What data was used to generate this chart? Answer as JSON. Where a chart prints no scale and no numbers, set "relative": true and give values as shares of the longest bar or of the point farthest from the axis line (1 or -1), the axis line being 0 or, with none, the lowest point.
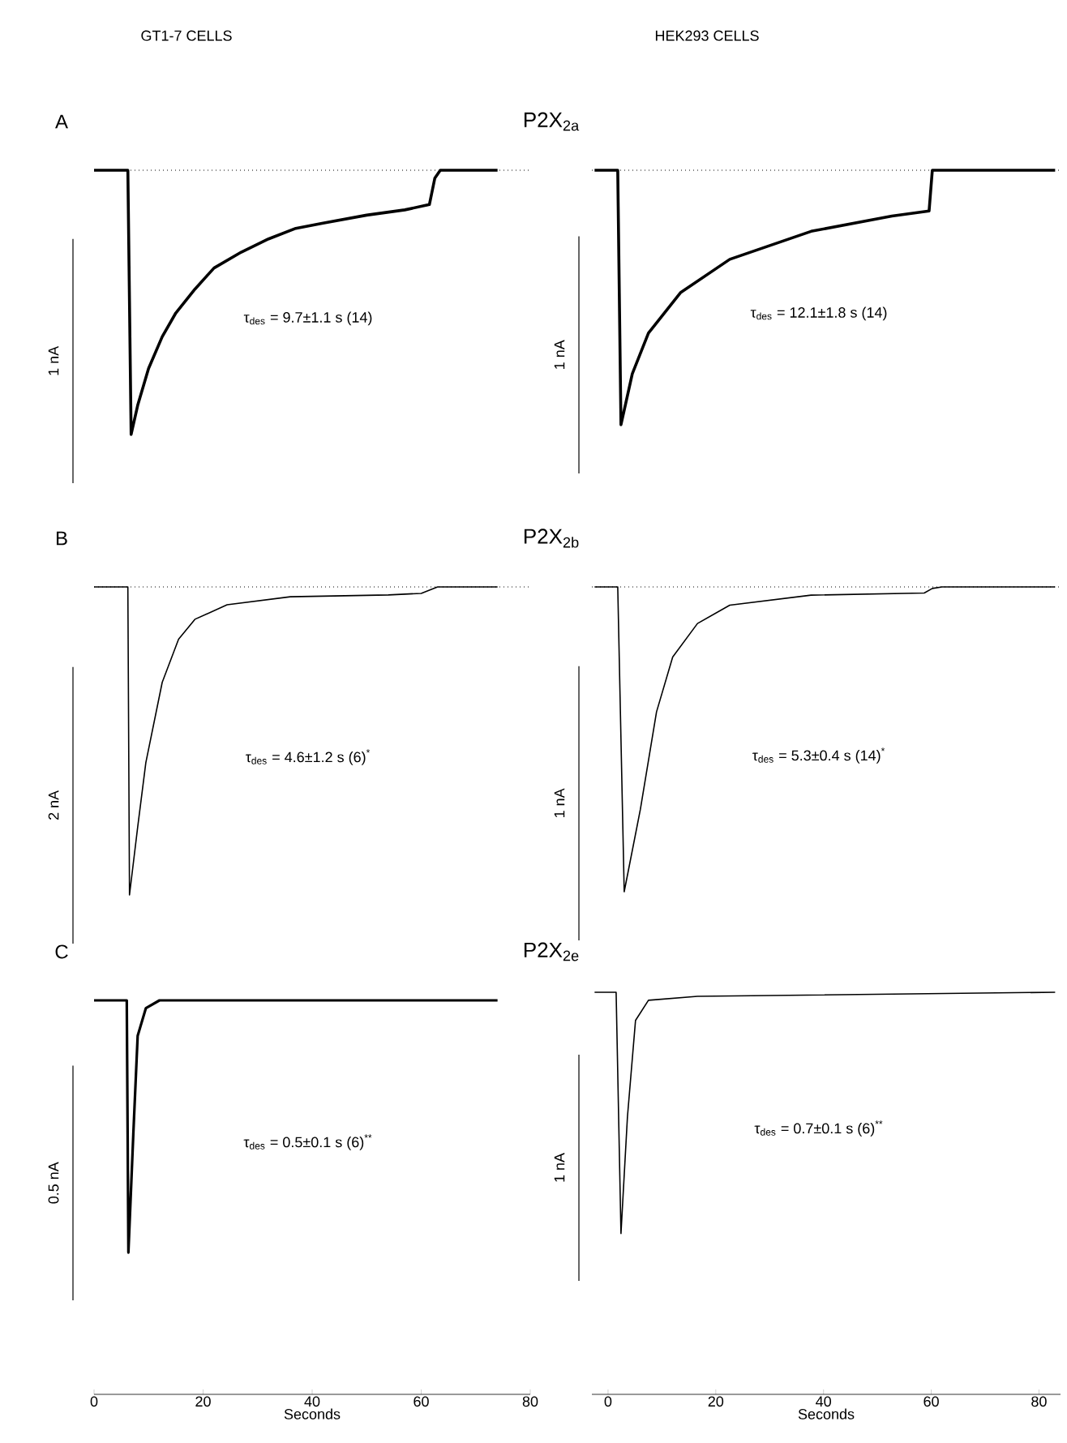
{
  "chart_data": [
    {
      "type": "line",
      "title": "GT1-7 CELLS",
      "relative": true,
      "tick_labels": false,
      "xlim": [
        0,
        80
      ],
      "x": [
        0,
        6.2,
        6.8,
        8,
        10,
        12.5,
        15,
        18.5,
        22,
        27,
        32,
        37,
        42,
        50,
        57,
        61.5,
        62.5,
        63.5,
        74
      ],
      "values": [
        0,
        0,
        -1,
        -0.89,
        -0.75,
        -0.63,
        -0.54,
        -0.45,
        -0.37,
        -0.31,
        -0.26,
        -0.22,
        -0.2,
        -0.17,
        -0.15,
        -0.13,
        -0.03,
        0,
        0
      ],
      "color": "#000000",
      "ref_lines": [
        {
          "axis": "y",
          "value": 0,
          "line_style": "dotted"
        }
      ],
      "annotations": [
        "A",
        "P2X$_{2a}$",
        "1 nA",
        "τ$_{des}$ = 9.7±1.1 s (14)"
      ]
    },
    {
      "type": "line",
      "title": "HEK293 CELLS",
      "relative": true,
      "tick_labels": false,
      "xlim": [
        -3,
        84
      ],
      "x": [
        -2.5,
        1.8,
        2.4,
        4.5,
        7.5,
        13.5,
        22.6,
        37.7,
        52.7,
        59.6,
        60.2,
        83
      ],
      "values": [
        0,
        0,
        -1,
        -0.8,
        -0.64,
        -0.48,
        -0.35,
        -0.24,
        -0.18,
        -0.16,
        0,
        0
      ],
      "color": "#000000",
      "ref_lines": [
        {
          "axis": "y",
          "value": 0,
          "line_style": "dotted"
        }
      ],
      "annotations": [
        "1 nA",
        "τ$_{des}$ = 12.1±1.8 s (14)"
      ]
    },
    {
      "type": "line",
      "relative": true,
      "tick_labels": false,
      "xlim": [
        0,
        80
      ],
      "x": [
        0,
        6.2,
        6.5,
        8,
        9.5,
        12.5,
        15.5,
        18.5,
        24.4,
        36,
        54,
        60,
        63,
        74
      ],
      "values": [
        0,
        0,
        -1,
        -0.78,
        -0.57,
        -0.31,
        -0.17,
        -0.105,
        -0.058,
        -0.032,
        -0.026,
        -0.021,
        0,
        0
      ],
      "color": "#000000",
      "ref_lines": [
        {
          "axis": "y",
          "value": 0,
          "line_style": "dotted"
        }
      ],
      "annotations": [
        "B",
        "P2X$_{2b}$",
        "2 nA",
        "τ$_{des}$ = 4.6±1.2 s (6)$^{*}$"
      ]
    },
    {
      "type": "line",
      "relative": true,
      "tick_labels": false,
      "xlim": [
        -3,
        84
      ],
      "x": [
        -2.5,
        1.8,
        3,
        6,
        9,
        12,
        16.6,
        22.6,
        37.7,
        58.7,
        60.2,
        62,
        83
      ],
      "values": [
        0,
        0,
        -1,
        -0.73,
        -0.41,
        -0.23,
        -0.12,
        -0.06,
        -0.027,
        -0.02,
        -0.005,
        0,
        0
      ],
      "color": "#000000",
      "ref_lines": [
        {
          "axis": "y",
          "value": 0,
          "line_style": "dotted"
        }
      ],
      "annotations": [
        "1 nA",
        "τ$_{des}$ = 5.3±0.4 s (14)$^{*}$"
      ]
    },
    {
      "type": "line",
      "relative": true,
      "tick_labels": "x",
      "xlim": [
        0,
        80
      ],
      "xticks": [
        0,
        20,
        40,
        60,
        80
      ],
      "xlabel": "Seconds",
      "x": [
        0,
        6,
        6.3,
        7.2,
        8,
        9.5,
        12,
        74
      ],
      "values": [
        1,
        1,
        0.36,
        0.66,
        0.91,
        0.98,
        1,
        1
      ],
      "color": "#000000",
      "annotations": [
        "C",
        "P2X$_{2e}$",
        "0.5 nA",
        "τ$_{des}$ = 0.5±0.1 s (6)$^{**}$"
      ]
    },
    {
      "type": "line",
      "relative": true,
      "tick_labels": "x",
      "xlim": [
        -3,
        84
      ],
      "xticks": [
        0,
        20,
        40,
        60,
        80
      ],
      "xlabel": "Seconds",
      "x": [
        -2.5,
        1.5,
        2.4,
        3.6,
        5.1,
        7.5,
        16.6,
        83
      ],
      "values": [
        1,
        1,
        0.4,
        0.69,
        0.93,
        0.98,
        0.99,
        1
      ],
      "color": "#000000",
      "annotations": [
        "1 nA",
        "τ$_{des}$ = 0.7±0.1 s (6)$^{**}$"
      ]
    }
  ]
}
